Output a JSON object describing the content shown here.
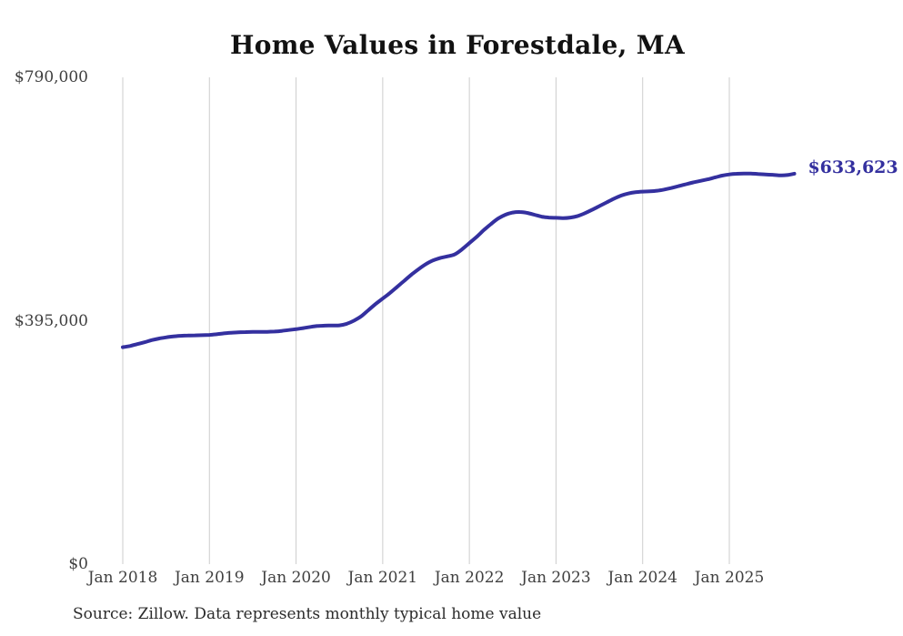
{
  "page": {
    "title": "Home Values in Forestdale, MA",
    "latest_value_label": "$633,623",
    "source_note": "Source: Zillow. Data represents monthly typical home value"
  },
  "chart_data": {
    "type": "line",
    "title": "Home Values in Forestdale, MA",
    "xlabel": "",
    "ylabel": "",
    "ylim": [
      0,
      790000
    ],
    "grid": "vertical-only",
    "legend": "none",
    "line_color": "#34309f",
    "gridline_color": "#cdcdcd",
    "y_ticks": [
      {
        "value": 790000,
        "label": "$790,000"
      },
      {
        "value": 395000,
        "label": "$395,000"
      },
      {
        "value": 0,
        "label": "$0"
      }
    ],
    "x_tick_labels": [
      "Jan 2018",
      "Jan 2019",
      "Jan 2020",
      "Jan 2021",
      "Jan 2022",
      "Jan 2023",
      "Jan 2024",
      "Jan 2025"
    ],
    "x_tick_month_index": [
      0,
      12,
      24,
      36,
      48,
      60,
      72,
      84
    ],
    "latest_value": 633623,
    "series": [
      {
        "name": "Monthly typical home value",
        "x_start": "2018-01",
        "x_end": "2025-10",
        "x_freq": "monthly",
        "values": [
          352000,
          354000,
          357000,
          360000,
          363500,
          366000,
          368000,
          369500,
          370500,
          371000,
          371300,
          371500,
          372000,
          373000,
          374500,
          375500,
          376200,
          376600,
          376800,
          376900,
          377000,
          377500,
          378500,
          380000,
          381300,
          383000,
          385000,
          386500,
          387000,
          387300,
          387500,
          390000,
          395000,
          402000,
          412000,
          422000,
          431000,
          440000,
          450000,
          460000,
          470000,
          479000,
          487000,
          493000,
          497000,
          499500,
          503000,
          511000,
          521000,
          531000,
          542000,
          552000,
          561000,
          567000,
          570500,
          571500,
          570000,
          567000,
          564000,
          562500,
          562000,
          561500,
          562500,
          565000,
          569500,
          575000,
          581000,
          587000,
          593000,
          598000,
          601500,
          603500,
          604500,
          605000,
          606000,
          608000,
          610500,
          613500,
          616500,
          619500,
          622000,
          624500,
          627500,
          630500,
          632500,
          633500,
          633900,
          633700,
          633100,
          632300,
          631800,
          630900,
          631400,
          633623
        ]
      }
    ]
  }
}
